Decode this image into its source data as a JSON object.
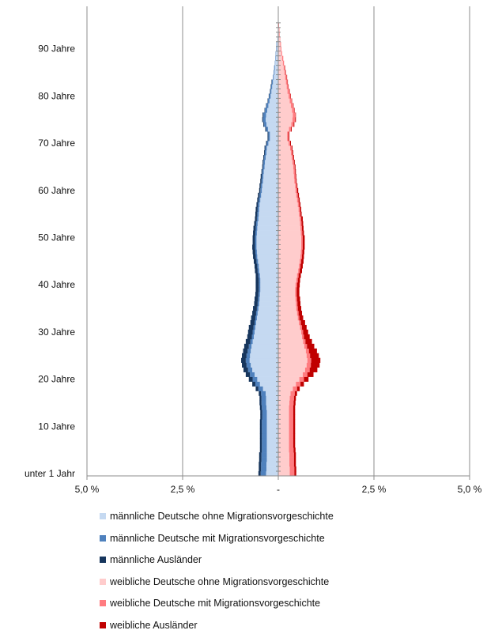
{
  "chart_data": {
    "type": "bar",
    "orientation": "horizontal-population-pyramid",
    "title": "",
    "xlabel": "",
    "ylabel": "",
    "xlim": [
      -5.0,
      5.0
    ],
    "xticks": [
      {
        "value": -5.0,
        "label": "5,0 %"
      },
      {
        "value": -2.5,
        "label": "2,5 %"
      },
      {
        "value": 0,
        "label": "-"
      },
      {
        "value": 2.5,
        "label": "2,5 %"
      },
      {
        "value": 5.0,
        "label": "5,0 %"
      }
    ],
    "yticks": [
      {
        "age": 0,
        "label": "unter 1 Jahr"
      },
      {
        "age": 10,
        "label": "10 Jahre"
      },
      {
        "age": 20,
        "label": "20 Jahre"
      },
      {
        "age": 30,
        "label": "30 Jahre"
      },
      {
        "age": 40,
        "label": "40 Jahre"
      },
      {
        "age": 50,
        "label": "50 Jahre"
      },
      {
        "age": 60,
        "label": "60 Jahre"
      },
      {
        "age": 70,
        "label": "70 Jahre"
      },
      {
        "age": 80,
        "label": "80 Jahre"
      },
      {
        "age": 90,
        "label": "90 Jahre"
      }
    ],
    "grid": true,
    "legend_position": "bottom",
    "ages": [
      0,
      1,
      2,
      3,
      4,
      5,
      6,
      7,
      8,
      9,
      10,
      11,
      12,
      13,
      14,
      15,
      16,
      17,
      18,
      19,
      20,
      21,
      22,
      23,
      24,
      25,
      26,
      27,
      28,
      29,
      30,
      31,
      32,
      33,
      34,
      35,
      36,
      37,
      38,
      39,
      40,
      41,
      42,
      43,
      44,
      45,
      46,
      47,
      48,
      49,
      50,
      51,
      52,
      53,
      54,
      55,
      56,
      57,
      58,
      59,
      60,
      61,
      62,
      63,
      64,
      65,
      66,
      67,
      68,
      69,
      70,
      71,
      72,
      73,
      74,
      75,
      76,
      77,
      78,
      79,
      80,
      81,
      82,
      83,
      84,
      85,
      86,
      87,
      88,
      89,
      90,
      91,
      92,
      93,
      94,
      95
    ],
    "series": [
      {
        "name": "männliche Deutsche ohne Migrationsvorgeschichte",
        "side": "left",
        "color": "#c5d9f1",
        "values": [
          0.32,
          0.31,
          0.31,
          0.3,
          0.3,
          0.3,
          0.3,
          0.3,
          0.3,
          0.3,
          0.3,
          0.3,
          0.3,
          0.3,
          0.31,
          0.32,
          0.32,
          0.33,
          0.4,
          0.48,
          0.55,
          0.62,
          0.68,
          0.72,
          0.75,
          0.74,
          0.72,
          0.7,
          0.67,
          0.64,
          0.62,
          0.6,
          0.58,
          0.56,
          0.54,
          0.52,
          0.5,
          0.49,
          0.48,
          0.47,
          0.47,
          0.47,
          0.48,
          0.5,
          0.51,
          0.53,
          0.55,
          0.56,
          0.57,
          0.57,
          0.57,
          0.56,
          0.55,
          0.54,
          0.52,
          0.51,
          0.5,
          0.49,
          0.47,
          0.45,
          0.43,
          0.42,
          0.4,
          0.39,
          0.38,
          0.36,
          0.35,
          0.33,
          0.31,
          0.3,
          0.26,
          0.22,
          0.22,
          0.27,
          0.31,
          0.33,
          0.32,
          0.29,
          0.26,
          0.23,
          0.2,
          0.18,
          0.16,
          0.14,
          0.12,
          0.1,
          0.09,
          0.08,
          0.07,
          0.06,
          0.05,
          0.04,
          0.03,
          0.02,
          0.01,
          0.005
        ]
      },
      {
        "name": "männliche Deutsche mit Migrationsvorgeschichte",
        "side": "left",
        "color": "#4f81bd",
        "values": [
          0.14,
          0.14,
          0.14,
          0.14,
          0.14,
          0.13,
          0.13,
          0.13,
          0.13,
          0.13,
          0.13,
          0.13,
          0.12,
          0.12,
          0.12,
          0.12,
          0.12,
          0.12,
          0.12,
          0.12,
          0.12,
          0.12,
          0.11,
          0.11,
          0.1,
          0.09,
          0.08,
          0.07,
          0.06,
          0.05,
          0.05,
          0.05,
          0.04,
          0.04,
          0.04,
          0.04,
          0.04,
          0.04,
          0.04,
          0.04,
          0.04,
          0.04,
          0.04,
          0.04,
          0.04,
          0.04,
          0.04,
          0.04,
          0.04,
          0.04,
          0.04,
          0.04,
          0.04,
          0.04,
          0.04,
          0.04,
          0.04,
          0.04,
          0.04,
          0.04,
          0.04,
          0.04,
          0.04,
          0.04,
          0.04,
          0.04,
          0.04,
          0.04,
          0.04,
          0.04,
          0.04,
          0.04,
          0.04,
          0.05,
          0.06,
          0.07,
          0.07,
          0.06,
          0.05,
          0.04,
          0.04,
          0.03,
          0.03,
          0.03,
          0.02,
          0.02,
          0.02,
          0.01,
          0.01,
          0.01,
          0.01,
          0.01,
          0.0,
          0.0,
          0.0,
          0.0
        ]
      },
      {
        "name": "männliche Ausländer",
        "side": "left",
        "color": "#17365d",
        "values": [
          0.06,
          0.06,
          0.06,
          0.06,
          0.06,
          0.05,
          0.05,
          0.05,
          0.05,
          0.05,
          0.05,
          0.05,
          0.05,
          0.05,
          0.05,
          0.05,
          0.05,
          0.06,
          0.07,
          0.08,
          0.1,
          0.11,
          0.12,
          0.12,
          0.12,
          0.12,
          0.12,
          0.12,
          0.12,
          0.12,
          0.12,
          0.12,
          0.11,
          0.11,
          0.1,
          0.1,
          0.09,
          0.09,
          0.08,
          0.08,
          0.08,
          0.08,
          0.07,
          0.07,
          0.07,
          0.07,
          0.07,
          0.07,
          0.07,
          0.06,
          0.06,
          0.06,
          0.06,
          0.05,
          0.05,
          0.05,
          0.05,
          0.04,
          0.04,
          0.04,
          0.03,
          0.03,
          0.03,
          0.03,
          0.02,
          0.02,
          0.02,
          0.02,
          0.02,
          0.02,
          0.02,
          0.02,
          0.02,
          0.02,
          0.02,
          0.02,
          0.02,
          0.01,
          0.01,
          0.01,
          0.01,
          0.01,
          0.01,
          0.01,
          0.0,
          0.0,
          0.0,
          0.0,
          0.0,
          0.0,
          0.0,
          0.0,
          0.0,
          0.0,
          0.0,
          0.0
        ]
      },
      {
        "name": "weibliche Deutsche ohne Migrationsvorgeschichte",
        "side": "right",
        "color": "#ffcccc",
        "values": [
          0.3,
          0.3,
          0.29,
          0.29,
          0.29,
          0.28,
          0.28,
          0.28,
          0.28,
          0.28,
          0.28,
          0.28,
          0.28,
          0.28,
          0.28,
          0.29,
          0.3,
          0.32,
          0.38,
          0.46,
          0.55,
          0.64,
          0.7,
          0.74,
          0.76,
          0.74,
          0.72,
          0.68,
          0.65,
          0.62,
          0.6,
          0.57,
          0.54,
          0.51,
          0.49,
          0.47,
          0.46,
          0.45,
          0.44,
          0.44,
          0.45,
          0.47,
          0.49,
          0.52,
          0.54,
          0.56,
          0.58,
          0.59,
          0.6,
          0.6,
          0.6,
          0.59,
          0.58,
          0.57,
          0.56,
          0.54,
          0.53,
          0.51,
          0.49,
          0.47,
          0.45,
          0.44,
          0.42,
          0.41,
          0.4,
          0.39,
          0.37,
          0.35,
          0.33,
          0.31,
          0.27,
          0.23,
          0.23,
          0.28,
          0.34,
          0.37,
          0.38,
          0.36,
          0.33,
          0.3,
          0.27,
          0.24,
          0.22,
          0.2,
          0.18,
          0.16,
          0.14,
          0.12,
          0.1,
          0.08,
          0.06,
          0.05,
          0.04,
          0.03,
          0.02,
          0.01
        ]
      },
      {
        "name": "weibliche Deutsche mit Migrationsvorgeschichte",
        "side": "right",
        "color": "#ff7c80",
        "values": [
          0.12,
          0.12,
          0.12,
          0.12,
          0.12,
          0.12,
          0.11,
          0.11,
          0.11,
          0.11,
          0.11,
          0.11,
          0.11,
          0.11,
          0.11,
          0.11,
          0.11,
          0.11,
          0.11,
          0.12,
          0.12,
          0.12,
          0.12,
          0.11,
          0.1,
          0.09,
          0.08,
          0.07,
          0.06,
          0.05,
          0.05,
          0.05,
          0.05,
          0.04,
          0.04,
          0.04,
          0.04,
          0.04,
          0.04,
          0.04,
          0.04,
          0.04,
          0.04,
          0.04,
          0.04,
          0.04,
          0.04,
          0.04,
          0.04,
          0.04,
          0.04,
          0.04,
          0.04,
          0.04,
          0.04,
          0.04,
          0.04,
          0.04,
          0.04,
          0.04,
          0.04,
          0.04,
          0.04,
          0.04,
          0.04,
          0.04,
          0.04,
          0.04,
          0.04,
          0.04,
          0.04,
          0.04,
          0.04,
          0.05,
          0.06,
          0.07,
          0.07,
          0.06,
          0.06,
          0.05,
          0.05,
          0.05,
          0.04,
          0.04,
          0.04,
          0.03,
          0.03,
          0.03,
          0.03,
          0.02,
          0.02,
          0.02,
          0.01,
          0.01,
          0.01,
          0.01
        ]
      },
      {
        "name": "weibliche Ausländer",
        "side": "right",
        "color": "#c00000",
        "values": [
          0.05,
          0.05,
          0.05,
          0.05,
          0.05,
          0.05,
          0.05,
          0.05,
          0.05,
          0.05,
          0.05,
          0.05,
          0.05,
          0.05,
          0.05,
          0.05,
          0.05,
          0.06,
          0.07,
          0.09,
          0.12,
          0.16,
          0.2,
          0.23,
          0.24,
          0.23,
          0.21,
          0.19,
          0.17,
          0.15,
          0.13,
          0.12,
          0.11,
          0.1,
          0.09,
          0.09,
          0.08,
          0.08,
          0.07,
          0.07,
          0.07,
          0.06,
          0.06,
          0.06,
          0.06,
          0.06,
          0.05,
          0.05,
          0.05,
          0.05,
          0.05,
          0.04,
          0.04,
          0.04,
          0.04,
          0.03,
          0.03,
          0.03,
          0.03,
          0.03,
          0.03,
          0.02,
          0.02,
          0.02,
          0.02,
          0.02,
          0.02,
          0.02,
          0.02,
          0.02,
          0.02,
          0.02,
          0.02,
          0.02,
          0.02,
          0.02,
          0.01,
          0.01,
          0.01,
          0.01,
          0.01,
          0.01,
          0.01,
          0.01,
          0.01,
          0.01,
          0.01,
          0.0,
          0.0,
          0.0,
          0.0,
          0.0,
          0.0,
          0.0,
          0.0,
          0.0
        ]
      }
    ]
  }
}
